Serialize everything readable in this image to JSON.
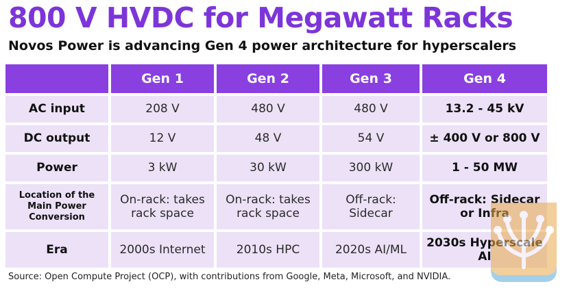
{
  "title": "800 V HVDC for Megawatt Racks",
  "subtitle": "Novos Power is advancing Gen 4 power architecture for hyperscalers",
  "table": {
    "headers": [
      "",
      "Gen 1",
      "Gen 2",
      "Gen 3",
      "Gen 4"
    ],
    "rows": [
      {
        "label": "AC input",
        "cells": [
          "208 V",
          "480 V",
          "480 V",
          "13.2 - 45 kV"
        ]
      },
      {
        "label": "DC output",
        "cells": [
          "12 V",
          "48 V",
          "54 V",
          "± 400 V or 800 V"
        ]
      },
      {
        "label": "Power",
        "cells": [
          "3 kW",
          "30 kW",
          "300 kW",
          "1 - 50 MW"
        ]
      },
      {
        "label": "Location of the Main Power Conversion",
        "cells": [
          "On-rack: takes rack space",
          "On-rack: takes rack space",
          "Off-rack: Sidecar",
          "Off-rack: Sidecar or Infra"
        ]
      },
      {
        "label": "Era",
        "cells": [
          "2000s Internet",
          "2010s HPC",
          "2020s AI/ML",
          "2030s Hyperscale AI"
        ]
      }
    ]
  },
  "source": "Source: Open Compute Project (OCP), with contributions from Google, Meta, Microsoft, and NVIDIA.",
  "colors": {
    "accent": "#7c35d9",
    "header_bg": "#8a3fe0",
    "cell_bg": "#ece1f7"
  },
  "watermark_icon": "tree-logo-icon"
}
